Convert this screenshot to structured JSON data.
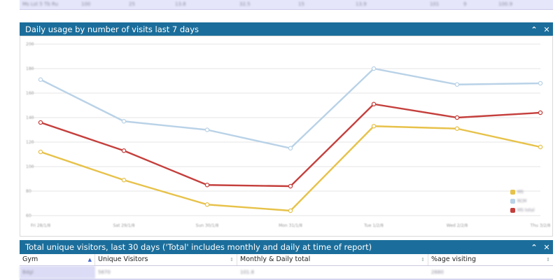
{
  "top_table": {
    "cells": [
      "Ms Lst 5 Tb Ru",
      "100",
      "25",
      "13.8",
      "32.5",
      "15",
      "13.9",
      "101",
      "9",
      "100.9"
    ]
  },
  "chart_panel": {
    "title": "Daily usage by number of visits last 7 days",
    "collapse_icon": "chevron-up",
    "close_icon": "close"
  },
  "chart_data": {
    "type": "line",
    "categories": [
      "Fri 28/1/8",
      "Sat 29/1/8",
      "Sun 30/1/8",
      "Mon 31/1/8",
      "Tue 1/2/8",
      "Wed 2/2/8",
      "Thu 3/2/8"
    ],
    "y_ticks": [
      "200",
      "180",
      "160",
      "140",
      "120",
      "100",
      "80",
      "60"
    ],
    "ylim": [
      60,
      200
    ],
    "series": [
      {
        "name": "MS",
        "color": "#e7c24a",
        "values": [
          112,
          89,
          69,
          64,
          133,
          131,
          116
        ]
      },
      {
        "name": "RCM",
        "color": "#b9d2e7",
        "values": [
          171,
          137,
          130,
          115,
          180,
          167,
          168
        ]
      },
      {
        "name": "MS total",
        "color": "#c43f3c",
        "values": [
          136,
          113,
          85,
          84,
          151,
          140,
          144
        ]
      }
    ],
    "grid": true,
    "legend_position": "bottom-right"
  },
  "visitors_panel": {
    "title": "Total unique visitors, last 30 days ('Total' includes monthly and daily at time of report)",
    "collapse_icon": "chevron-up",
    "close_icon": "close"
  },
  "visitors_table": {
    "columns": [
      "Gym",
      "Unique Visitors",
      "Monthly & Daily total",
      "%age visiting"
    ],
    "row": [
      "Bdgl",
      "5670",
      "101.8",
      "2680"
    ]
  },
  "colors": {
    "header_bg": "#1b6e9b",
    "row_highlight": "#e6e6fb"
  }
}
